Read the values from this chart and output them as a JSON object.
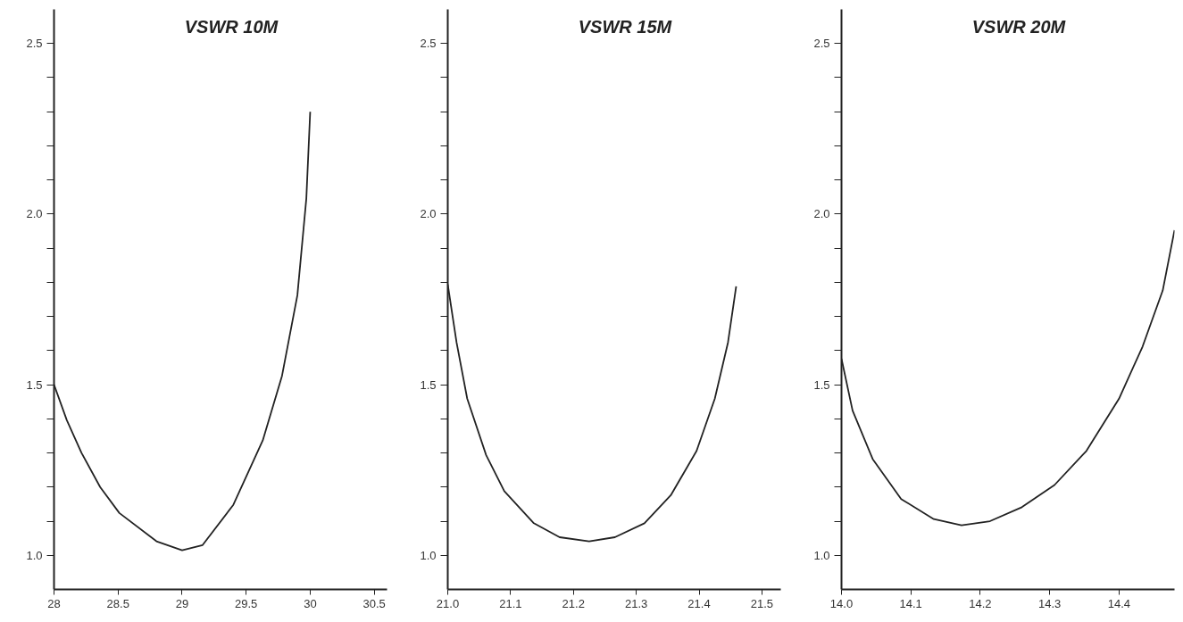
{
  "chart_data": [
    {
      "type": "line",
      "title": "VSWR 10M",
      "xlim": [
        28,
        30.6
      ],
      "ylim": [
        0.9,
        2.6
      ],
      "line_style": "solid",
      "xticks": [
        {
          "value": 28,
          "label": "28"
        },
        {
          "value": 28.5,
          "label": "28.5"
        },
        {
          "value": 29,
          "label": "29"
        },
        {
          "value": 29.5,
          "label": "29.5"
        },
        {
          "value": 30,
          "label": "30"
        },
        {
          "value": 30.5,
          "label": "30.5"
        }
      ],
      "yticks": [
        {
          "value": 1.0,
          "label": "1.0"
        },
        {
          "value": 1.1,
          "label": null
        },
        {
          "value": 1.2,
          "label": null
        },
        {
          "value": 1.3,
          "label": null
        },
        {
          "value": 1.4,
          "label": null
        },
        {
          "value": 1.5,
          "label": "1.5"
        },
        {
          "value": 1.6,
          "label": null
        },
        {
          "value": 1.7,
          "label": null
        },
        {
          "value": 1.8,
          "label": null
        },
        {
          "value": 1.9,
          "label": null
        },
        {
          "value": 2.0,
          "label": "2.0"
        },
        {
          "value": 2.1,
          "label": null
        },
        {
          "value": 2.2,
          "label": null
        },
        {
          "value": 2.3,
          "label": null
        },
        {
          "value": 2.4,
          "label": null
        },
        {
          "value": 2.5,
          "label": "2.5"
        }
      ],
      "series": [
        {
          "color": "#222222",
          "x": [
            28.0,
            28.1,
            28.215,
            28.36,
            28.51,
            28.8,
            29.0,
            29.16,
            29.4,
            29.63,
            29.78,
            29.9,
            29.97,
            30.0
          ],
          "values": [
            1.5,
            1.396,
            1.3,
            1.2,
            1.124,
            1.041,
            1.015,
            1.03,
            1.148,
            1.337,
            1.526,
            1.762,
            2.046,
            2.3
          ]
        }
      ]
    },
    {
      "type": "line",
      "title": "VSWR 15M",
      "xlim": [
        21.0,
        21.53
      ],
      "ylim": [
        0.9,
        2.6
      ],
      "line_style": "solid",
      "xticks": [
        {
          "value": 21.0,
          "label": "21.0"
        },
        {
          "value": 21.1,
          "label": "21.1"
        },
        {
          "value": 21.2,
          "label": "21.2"
        },
        {
          "value": 21.3,
          "label": "21.3"
        },
        {
          "value": 21.4,
          "label": "21.4"
        },
        {
          "value": 21.5,
          "label": "21.5"
        }
      ],
      "yticks": [
        {
          "value": 1.0,
          "label": "1.0"
        },
        {
          "value": 1.1,
          "label": null
        },
        {
          "value": 1.2,
          "label": null
        },
        {
          "value": 1.3,
          "label": null
        },
        {
          "value": 1.4,
          "label": null
        },
        {
          "value": 1.5,
          "label": "1.5"
        },
        {
          "value": 1.6,
          "label": null
        },
        {
          "value": 1.7,
          "label": null
        },
        {
          "value": 1.8,
          "label": null
        },
        {
          "value": 1.9,
          "label": null
        },
        {
          "value": 2.0,
          "label": "2.0"
        },
        {
          "value": 2.1,
          "label": null
        },
        {
          "value": 2.2,
          "label": null
        },
        {
          "value": 2.3,
          "label": null
        },
        {
          "value": 2.4,
          "label": null
        },
        {
          "value": 2.5,
          "label": "2.5"
        }
      ],
      "series": [
        {
          "color": "#222222",
          "x": [
            21.0,
            21.014,
            21.031,
            21.061,
            21.09,
            21.137,
            21.178,
            21.225,
            21.266,
            21.313,
            21.355,
            21.396,
            21.425,
            21.446,
            21.459
          ],
          "values": [
            1.794,
            1.624,
            1.459,
            1.294,
            1.188,
            1.094,
            1.053,
            1.041,
            1.053,
            1.094,
            1.176,
            1.306,
            1.459,
            1.624,
            1.788
          ]
        }
      ]
    },
    {
      "type": "line",
      "title": "VSWR 20M",
      "xlim": [
        14.0,
        14.48
      ],
      "ylim": [
        0.9,
        2.6
      ],
      "line_style": "solid",
      "xticks": [
        {
          "value": 14.0,
          "label": "14.0"
        },
        {
          "value": 14.1,
          "label": "14.1"
        },
        {
          "value": 14.2,
          "label": "14.2"
        },
        {
          "value": 14.3,
          "label": "14.3"
        },
        {
          "value": 14.4,
          "label": "14.4"
        }
      ],
      "yticks": [
        {
          "value": 1.0,
          "label": "1.0"
        },
        {
          "value": 1.1,
          "label": null
        },
        {
          "value": 1.2,
          "label": null
        },
        {
          "value": 1.3,
          "label": null
        },
        {
          "value": 1.4,
          "label": null
        },
        {
          "value": 1.5,
          "label": "1.5"
        },
        {
          "value": 1.6,
          "label": null
        },
        {
          "value": 1.7,
          "label": null
        },
        {
          "value": 1.8,
          "label": null
        },
        {
          "value": 1.9,
          "label": null
        },
        {
          "value": 2.0,
          "label": "2.0"
        },
        {
          "value": 2.1,
          "label": null
        },
        {
          "value": 2.2,
          "label": null
        },
        {
          "value": 2.3,
          "label": null
        },
        {
          "value": 2.4,
          "label": null
        },
        {
          "value": 2.5,
          "label": "2.5"
        }
      ],
      "series": [
        {
          "color": "#222222",
          "x": [
            14.0,
            14.016,
            14.045,
            14.086,
            14.133,
            14.173,
            14.214,
            14.26,
            14.307,
            14.353,
            14.4,
            14.434,
            14.463,
            14.48
          ],
          "values": [
            1.576,
            1.424,
            1.282,
            1.165,
            1.106,
            1.088,
            1.1,
            1.141,
            1.206,
            1.306,
            1.459,
            1.612,
            1.776,
            1.953
          ]
        }
      ]
    }
  ]
}
